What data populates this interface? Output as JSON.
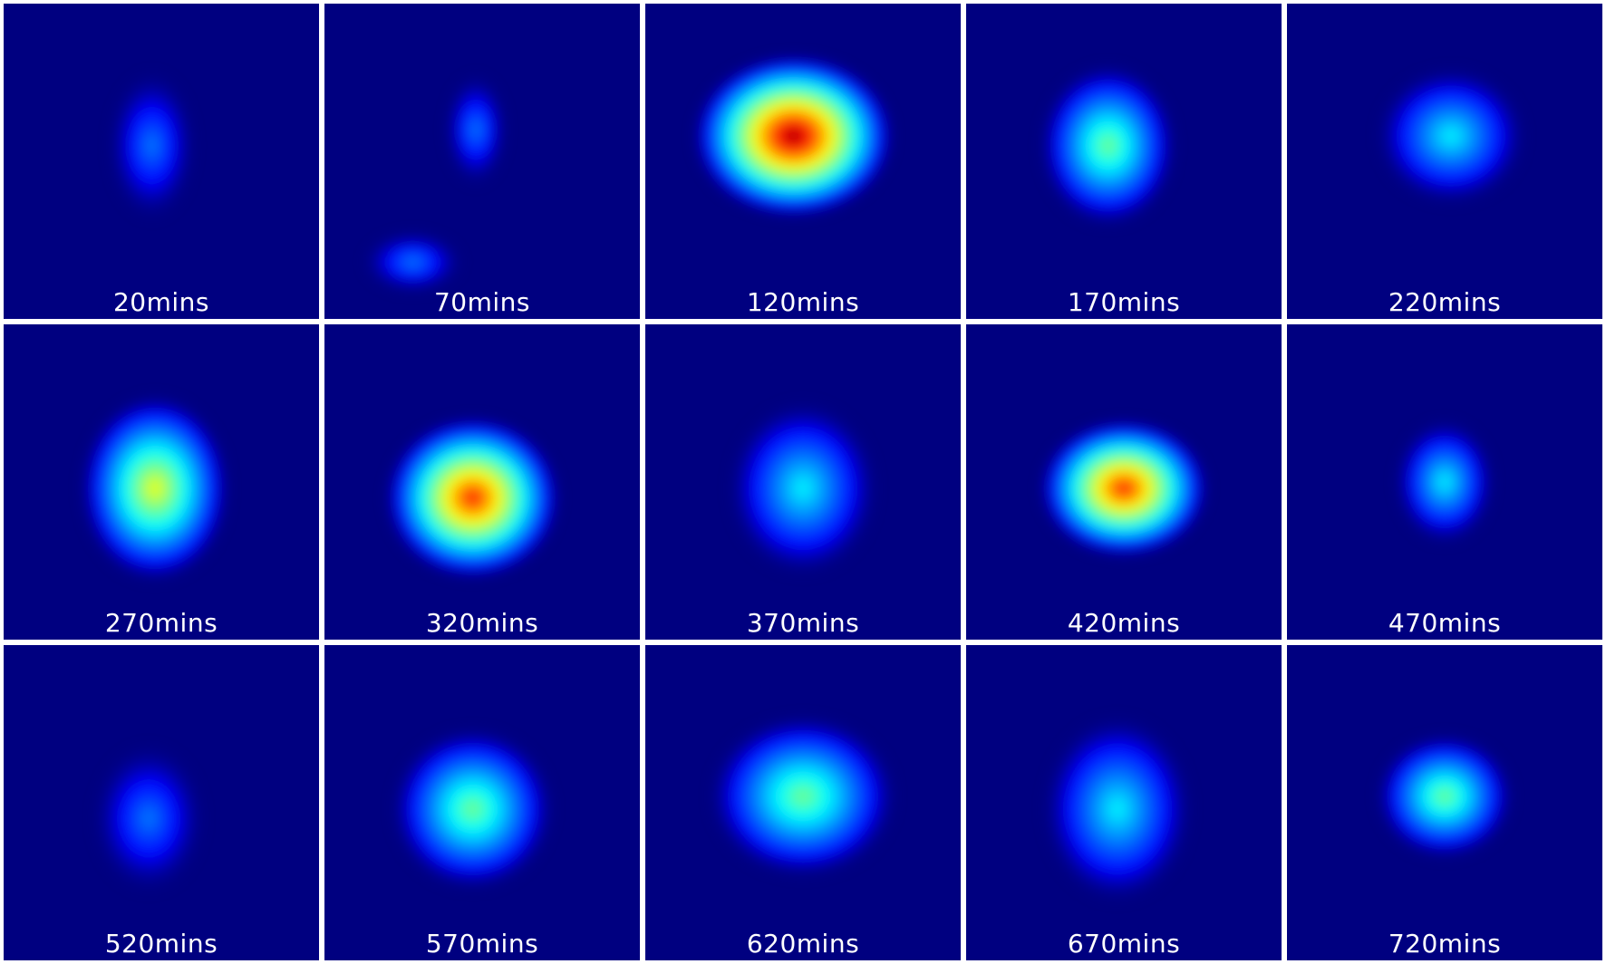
{
  "colormap": [
    "#000080",
    "#0000ff",
    "#0080ff",
    "#00ffff",
    "#80ff80",
    "#ffff00",
    "#ff8000",
    "#ff0000",
    "#800000"
  ],
  "background_color": "#000080",
  "panels": [
    {
      "label": "20mins",
      "intensity": 0.28
    },
    {
      "label": "70mins",
      "intensity": 0.3
    },
    {
      "label": "120mins",
      "intensity": 1.0
    },
    {
      "label": "170mins",
      "intensity": 0.45
    },
    {
      "label": "220mins",
      "intensity": 0.4
    },
    {
      "label": "270mins",
      "intensity": 0.62
    },
    {
      "label": "320mins",
      "intensity": 0.88
    },
    {
      "label": "370mins",
      "intensity": 0.34
    },
    {
      "label": "420mins",
      "intensity": 0.82
    },
    {
      "label": "470mins",
      "intensity": 0.32
    },
    {
      "label": "520mins",
      "intensity": 0.28
    },
    {
      "label": "570mins",
      "intensity": 0.45
    },
    {
      "label": "620mins",
      "intensity": 0.55
    },
    {
      "label": "670mins",
      "intensity": 0.36
    },
    {
      "label": "720mins",
      "intensity": 0.44
    }
  ]
}
